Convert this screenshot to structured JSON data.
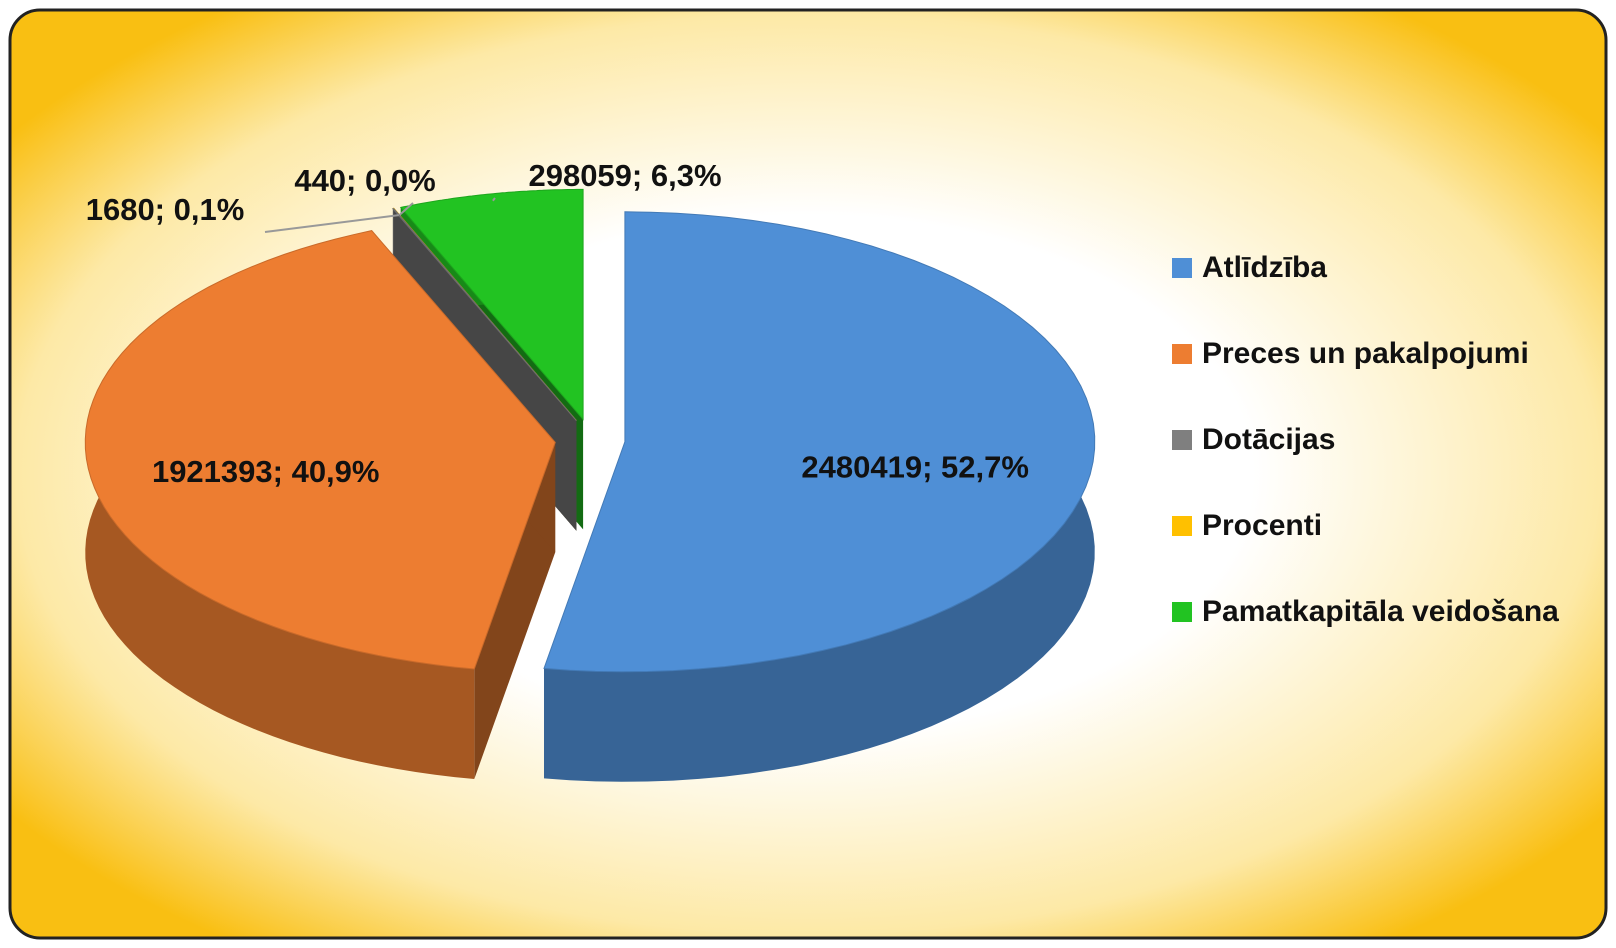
{
  "chart_data": {
    "type": "pie3d",
    "categories": [
      "Atlīdzība",
      "Preces un pakalpojumi",
      "Dotācijas",
      "Procenti",
      "Pamatkapitāla veidošana"
    ],
    "values": [
      2480419,
      1921393,
      1680,
      440,
      298059
    ],
    "value_labels": [
      "2480419; 52,7%",
      "1921393; 40,9%",
      "1680; 0,1%",
      "440; 0,0%",
      "298059; 6,3%"
    ],
    "colors": [
      "#4f8fd6",
      "#ed7d31",
      "#7f7f7f",
      "#ffc000",
      "#22c322"
    ],
    "legend": "right"
  }
}
